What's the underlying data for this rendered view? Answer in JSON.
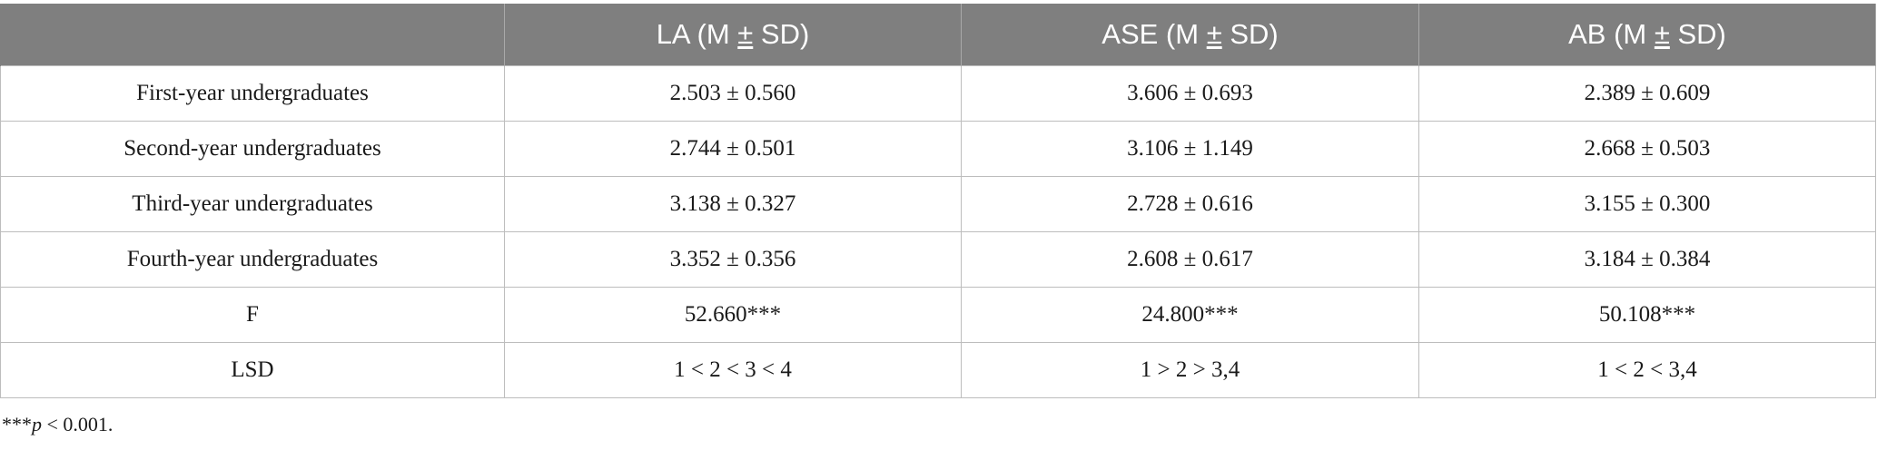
{
  "table": {
    "headers": [
      {
        "prefix": "",
        "pm": "",
        "suffix": ""
      },
      {
        "prefix": "LA (M ",
        "pm": "±",
        "suffix": " SD)"
      },
      {
        "prefix": "ASE (M ",
        "pm": "±",
        "suffix": " SD)"
      },
      {
        "prefix": "AB (M ",
        "pm": "±",
        "suffix": " SD)"
      }
    ],
    "rows": [
      [
        "First-year undergraduates",
        "2.503 ± 0.560",
        "3.606 ± 0.693",
        "2.389 ± 0.609"
      ],
      [
        "Second-year undergraduates",
        "2.744 ± 0.501",
        "3.106 ± 1.149",
        "2.668 ± 0.503"
      ],
      [
        "Third-year undergraduates",
        "3.138 ± 0.327",
        "2.728 ± 0.616",
        "3.155 ± 0.300"
      ],
      [
        "Fourth-year undergraduates",
        "3.352 ± 0.356",
        "2.608 ± 0.617",
        "3.184 ± 0.384"
      ],
      [
        "F",
        "52.660***",
        "24.800***",
        "50.108***"
      ],
      [
        "LSD",
        "1 < 2 < 3 < 4",
        "1 > 2 > 3,4",
        "1 < 2 < 3,4"
      ]
    ]
  },
  "footnote": {
    "stars": "***",
    "p_symbol": "p",
    "rest": " < 0.001."
  },
  "colors": {
    "header_bg": "#7f7f7f",
    "header_text": "#ffffff",
    "grid_line": "#bdbdbd"
  }
}
